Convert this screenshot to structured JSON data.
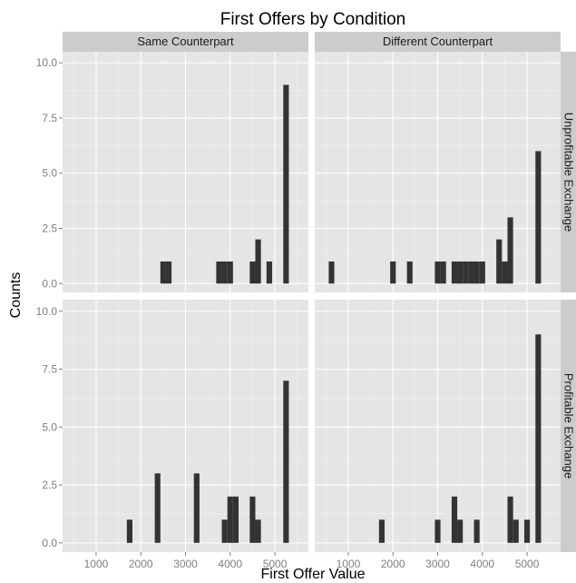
{
  "chart_data": {
    "type": "bar",
    "title": "First Offers by Condition",
    "xlabel": "First Offer Value",
    "ylabel": "Counts",
    "xlim": [
      250,
      5750
    ],
    "ylim": [
      -0.4,
      10.5
    ],
    "x_ticks": [
      1000,
      2000,
      3000,
      4000,
      5000
    ],
    "y_ticks": [
      0.0,
      2.5,
      5.0,
      7.5,
      10.0
    ],
    "y_tick_labels": [
      "0.0",
      "2.5",
      "5.0",
      "7.5",
      "10.0"
    ],
    "bin_width": 125,
    "column_facets": [
      "Same Counterpart",
      "Different Counterpart"
    ],
    "row_facets": [
      "Unprofitable Exchange",
      "Profitable Exchange"
    ],
    "grid": true,
    "bar_color": "#333333",
    "panel_color": "#e5e5e5",
    "strip_color": "#cccccc",
    "panels": [
      {
        "column": "Same Counterpart",
        "row": "Unprofitable Exchange",
        "bins": [
          {
            "x": 2500,
            "count": 1
          },
          {
            "x": 2625,
            "count": 1
          },
          {
            "x": 3750,
            "count": 1
          },
          {
            "x": 3875,
            "count": 1
          },
          {
            "x": 4000,
            "count": 1
          },
          {
            "x": 4500,
            "count": 1
          },
          {
            "x": 4625,
            "count": 2
          },
          {
            "x": 4875,
            "count": 1
          },
          {
            "x": 5250,
            "count": 9
          }
        ]
      },
      {
        "column": "Different Counterpart",
        "row": "Unprofitable Exchange",
        "bins": [
          {
            "x": 625,
            "count": 1
          },
          {
            "x": 2000,
            "count": 1
          },
          {
            "x": 2375,
            "count": 1
          },
          {
            "x": 3000,
            "count": 1
          },
          {
            "x": 3125,
            "count": 1
          },
          {
            "x": 3375,
            "count": 1
          },
          {
            "x": 3500,
            "count": 1
          },
          {
            "x": 3625,
            "count": 1
          },
          {
            "x": 3750,
            "count": 1
          },
          {
            "x": 3875,
            "count": 1
          },
          {
            "x": 4000,
            "count": 1
          },
          {
            "x": 4375,
            "count": 2
          },
          {
            "x": 4500,
            "count": 1
          },
          {
            "x": 4625,
            "count": 3
          },
          {
            "x": 5250,
            "count": 6
          }
        ]
      },
      {
        "column": "Same Counterpart",
        "row": "Profitable Exchange",
        "bins": [
          {
            "x": 1750,
            "count": 1
          },
          {
            "x": 2375,
            "count": 3
          },
          {
            "x": 3250,
            "count": 3
          },
          {
            "x": 3875,
            "count": 1
          },
          {
            "x": 4000,
            "count": 2
          },
          {
            "x": 4125,
            "count": 2
          },
          {
            "x": 4500,
            "count": 2
          },
          {
            "x": 4625,
            "count": 1
          },
          {
            "x": 5250,
            "count": 7
          }
        ]
      },
      {
        "column": "Different Counterpart",
        "row": "Profitable Exchange",
        "bins": [
          {
            "x": 1750,
            "count": 1
          },
          {
            "x": 3000,
            "count": 1
          },
          {
            "x": 3375,
            "count": 2
          },
          {
            "x": 3500,
            "count": 1
          },
          {
            "x": 3875,
            "count": 1
          },
          {
            "x": 4625,
            "count": 2
          },
          {
            "x": 4750,
            "count": 1
          },
          {
            "x": 5000,
            "count": 1
          },
          {
            "x": 5250,
            "count": 9
          }
        ]
      }
    ]
  }
}
